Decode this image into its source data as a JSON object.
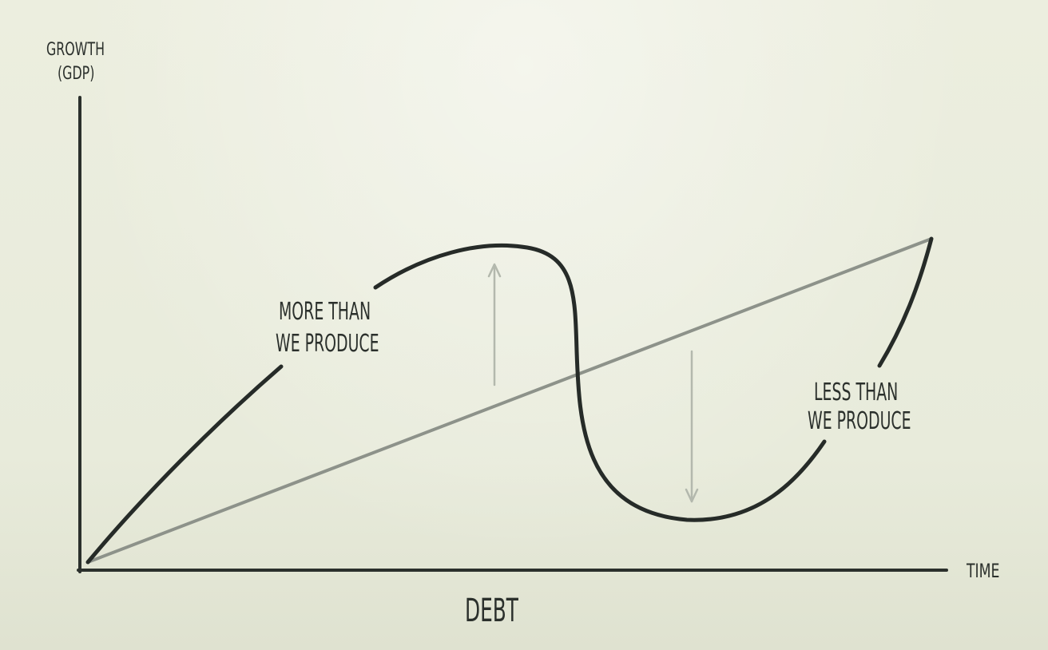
{
  "labels": {
    "y_axis_title": "GROWTH",
    "y_axis_subtitle": "(GDP)",
    "x_axis": "TIME",
    "series_main": "DEBT",
    "upper_note_line1": "MORE THAN",
    "upper_note_line2": "WE PRODUCE",
    "lower_note_line1": "LESS THAN",
    "lower_note_line2": "WE PRODUCE"
  },
  "colors": {
    "background": "#e9eddd",
    "axis": "#2b302c",
    "debt_curve": "#262b28",
    "trend_line": "#8d928a",
    "arrows": "#b3b8ad",
    "text": "#2b302c"
  }
}
